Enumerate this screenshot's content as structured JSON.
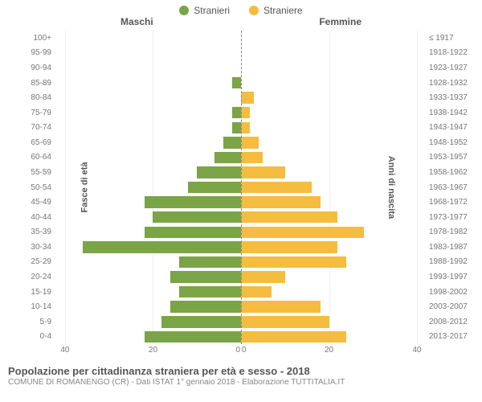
{
  "chart": {
    "type": "population-pyramid",
    "legend": [
      {
        "label": "Stranieri",
        "color": "#7aa446"
      },
      {
        "label": "Straniere",
        "color": "#f4bd3f"
      }
    ],
    "gender_labels": {
      "left": "Maschi",
      "right": "Femmine"
    },
    "axis_titles": {
      "left": "Fasce di età",
      "right": "Anni di nascita"
    },
    "x_axis": {
      "max": 42,
      "ticks": [
        40,
        20,
        0,
        0,
        20,
        40
      ]
    },
    "colors": {
      "male": "#7aa446",
      "female": "#f4bd3f",
      "grid": "#f0f0f0",
      "center_line": "#888888",
      "text": "#555555",
      "tick_text": "#777777",
      "background": "#ffffff"
    },
    "typography": {
      "tick_fontsize": 10,
      "axis_title_fontsize": 11,
      "legend_fontsize": 12,
      "title_fontsize": 13,
      "subtitle_fontsize": 10
    },
    "rows": [
      {
        "age": "100+",
        "birth": "≤ 1917",
        "male": 0,
        "female": 0
      },
      {
        "age": "95-99",
        "birth": "1918-1922",
        "male": 0,
        "female": 0
      },
      {
        "age": "90-94",
        "birth": "1923-1927",
        "male": 0,
        "female": 0
      },
      {
        "age": "85-89",
        "birth": "1928-1932",
        "male": 2,
        "female": 0
      },
      {
        "age": "80-84",
        "birth": "1933-1937",
        "male": 0,
        "female": 3
      },
      {
        "age": "75-79",
        "birth": "1938-1942",
        "male": 2,
        "female": 2
      },
      {
        "age": "70-74",
        "birth": "1943-1947",
        "male": 2,
        "female": 2
      },
      {
        "age": "65-69",
        "birth": "1948-1952",
        "male": 4,
        "female": 4
      },
      {
        "age": "60-64",
        "birth": "1953-1957",
        "male": 6,
        "female": 5
      },
      {
        "age": "55-59",
        "birth": "1958-1962",
        "male": 10,
        "female": 10
      },
      {
        "age": "50-54",
        "birth": "1963-1967",
        "male": 12,
        "female": 16
      },
      {
        "age": "45-49",
        "birth": "1968-1972",
        "male": 22,
        "female": 18
      },
      {
        "age": "40-44",
        "birth": "1973-1977",
        "male": 20,
        "female": 22
      },
      {
        "age": "35-39",
        "birth": "1978-1982",
        "male": 22,
        "female": 28
      },
      {
        "age": "30-34",
        "birth": "1983-1987",
        "male": 36,
        "female": 22
      },
      {
        "age": "25-29",
        "birth": "1988-1992",
        "male": 14,
        "female": 24
      },
      {
        "age": "20-24",
        "birth": "1993-1997",
        "male": 16,
        "female": 10
      },
      {
        "age": "15-19",
        "birth": "1998-2002",
        "male": 14,
        "female": 7
      },
      {
        "age": "10-14",
        "birth": "2003-2007",
        "male": 16,
        "female": 18
      },
      {
        "age": "5-9",
        "birth": "2008-2012",
        "male": 18,
        "female": 20
      },
      {
        "age": "0-4",
        "birth": "2013-2017",
        "male": 22,
        "female": 24
      }
    ]
  },
  "footer": {
    "title": "Popolazione per cittadinanza straniera per età e sesso - 2018",
    "subtitle": "COMUNE DI ROMANENGO (CR) - Dati ISTAT 1° gennaio 2018 - Elaborazione TUTTITALIA.IT"
  }
}
